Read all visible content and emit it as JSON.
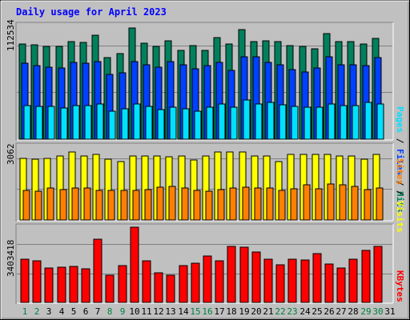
{
  "title": "Daily usage for April 2023",
  "colors": {
    "background": "#c0c0c0",
    "panel": "#c0c0c0",
    "title": "#0000ff",
    "hits": "#00805c",
    "files": "#0040ff",
    "pages": "#00e0ff",
    "visits": "#ffff00",
    "sites": "#ff8000",
    "kbytes": "#ff0000",
    "weekend_day_label": "#008040",
    "weekday_label": "#000000"
  },
  "panels": {
    "top": {
      "tick_label": "112534",
      "legend": [
        "Pages",
        "Files",
        "Hits"
      ]
    },
    "middle": {
      "tick_label": "3062",
      "legend": [
        "Sites",
        "Visits"
      ]
    },
    "bottom": {
      "tick_label": "3403418",
      "legend": [
        "KBytes"
      ]
    }
  },
  "chart_data": [
    {
      "type": "bar",
      "title": "Daily usage for April 2023",
      "categories": [
        "1",
        "2",
        "3",
        "4",
        "5",
        "6",
        "7",
        "8",
        "9",
        "10",
        "11",
        "12",
        "13",
        "14",
        "15",
        "16",
        "17",
        "18",
        "19",
        "20",
        "21",
        "22",
        "23",
        "24",
        "25",
        "26",
        "27",
        "28",
        "29",
        "30",
        "31"
      ],
      "weekend_days": [
        "1",
        "2",
        "8",
        "9",
        "15",
        "16",
        "22",
        "23",
        "29",
        "30"
      ],
      "ylim": [
        0,
        140000
      ],
      "tick": 112534,
      "series": [
        {
          "name": "Hits",
          "values": [
            114000,
            113000,
            111000,
            111000,
            117000,
            116000,
            125000,
            98000,
            103000,
            133000,
            115000,
            111000,
            118000,
            106000,
            112000,
            106000,
            122000,
            114000,
            131000,
            117000,
            118000,
            117000,
            112000,
            111000,
            108000,
            127000,
            117000,
            117000,
            114000,
            121000,
            0
          ]
        },
        {
          "name": "Files",
          "values": [
            91000,
            88000,
            86000,
            85000,
            92000,
            91000,
            93000,
            78000,
            80000,
            93000,
            89000,
            86000,
            93000,
            89000,
            84000,
            88000,
            92000,
            82000,
            99000,
            99000,
            92000,
            89000,
            83000,
            81000,
            85000,
            99000,
            89000,
            89000,
            88000,
            98000,
            0
          ]
        },
        {
          "name": "Pages",
          "values": [
            40000,
            39000,
            39000,
            37000,
            40000,
            40000,
            42000,
            34000,
            36000,
            42000,
            39000,
            35000,
            38000,
            36000,
            34000,
            38000,
            42000,
            38000,
            47000,
            42000,
            44000,
            41000,
            39000,
            38000,
            38000,
            42000,
            40000,
            40000,
            44000,
            42000,
            0
          ]
        }
      ]
    },
    {
      "type": "bar",
      "categories": [
        "1",
        "2",
        "3",
        "4",
        "5",
        "6",
        "7",
        "8",
        "9",
        "10",
        "11",
        "12",
        "13",
        "14",
        "15",
        "16",
        "17",
        "18",
        "19",
        "20",
        "21",
        "22",
        "23",
        "24",
        "25",
        "26",
        "27",
        "28",
        "29",
        "30",
        "31"
      ],
      "ylim": [
        0,
        3800
      ],
      "tick": 3062,
      "series": [
        {
          "name": "Visits",
          "values": [
            3050,
            3000,
            3050,
            3150,
            3380,
            3150,
            3250,
            3000,
            2900,
            3150,
            3180,
            3180,
            3120,
            3150,
            2950,
            3180,
            3380,
            3380,
            3380,
            3180,
            3150,
            2900,
            3230,
            3230,
            3230,
            3230,
            3180,
            3150,
            3000,
            3250,
            0
          ]
        },
        {
          "name": "Sites",
          "values": [
            1480,
            1420,
            1580,
            1500,
            1580,
            1580,
            1450,
            1450,
            1480,
            1480,
            1500,
            1630,
            1680,
            1580,
            1480,
            1420,
            1500,
            1580,
            1630,
            1580,
            1580,
            1480,
            1530,
            1730,
            1530,
            1800,
            1730,
            1680,
            1500,
            1580,
            0
          ]
        }
      ]
    },
    {
      "type": "bar",
      "categories": [
        "1",
        "2",
        "3",
        "4",
        "5",
        "6",
        "7",
        "8",
        "9",
        "10",
        "11",
        "12",
        "13",
        "14",
        "15",
        "16",
        "17",
        "18",
        "19",
        "20",
        "21",
        "22",
        "23",
        "24",
        "25",
        "26",
        "27",
        "28",
        "29",
        "30",
        "31"
      ],
      "ylim": [
        0,
        4600000
      ],
      "tick": 3403418,
      "series": [
        {
          "name": "KBytes",
          "values": [
            2550000,
            2450000,
            2000000,
            2050000,
            2100000,
            1950000,
            3700000,
            1600000,
            2150000,
            4400000,
            2450000,
            1750000,
            1600000,
            2150000,
            2300000,
            2700000,
            2450000,
            3300000,
            3250000,
            2950000,
            2550000,
            2200000,
            2550000,
            2500000,
            2850000,
            2250000,
            2000000,
            2550000,
            3050000,
            3300000,
            0
          ]
        }
      ]
    }
  ]
}
